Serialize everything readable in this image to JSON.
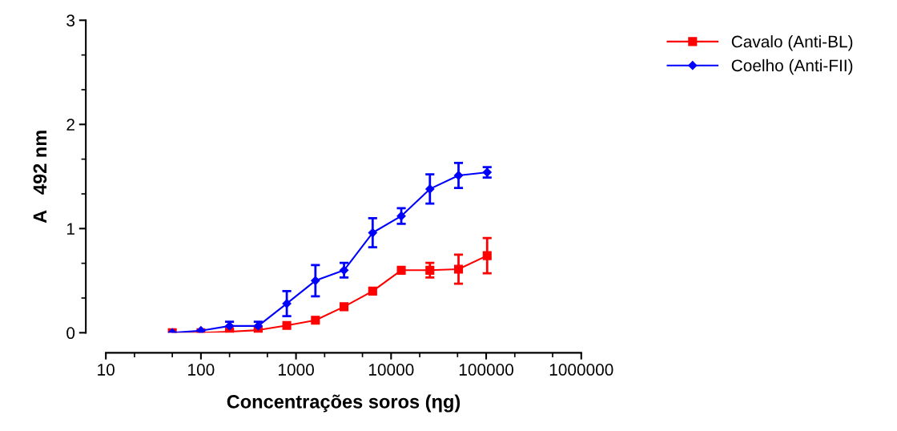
{
  "chart_data": {
    "type": "line",
    "xlabel": "Concentrações soros (ηg)",
    "ylabel": "A   492 nm",
    "x": [
      50,
      100,
      200,
      400,
      800,
      1600,
      3200,
      6400,
      12800,
      25600,
      51200,
      102400
    ],
    "log": "x",
    "xlim": [
      10,
      1000000
    ],
    "xticks": [
      10,
      100,
      1000,
      10000,
      100000,
      1000000
    ],
    "ylim": [
      0,
      3
    ],
    "yticks": [
      0,
      1,
      2,
      3
    ],
    "grid": false,
    "legend": "top right",
    "series": [
      {
        "name": "Cavalo (Anti-BL)",
        "color": "#ff0000",
        "marker": "square",
        "values": [
          0.0,
          0.0,
          0.01,
          0.025,
          0.07,
          0.12,
          0.25,
          0.4,
          0.6,
          0.6,
          0.61,
          0.74
        ],
        "errors": [
          null,
          null,
          null,
          null,
          null,
          null,
          null,
          null,
          null,
          0.07,
          0.14,
          0.17
        ]
      },
      {
        "name": "Coelho (Anti-FII)",
        "color": "#0000ff",
        "marker": "diamond",
        "values": [
          0.0,
          0.02,
          0.065,
          0.065,
          0.28,
          0.5,
          0.6,
          0.96,
          1.12,
          1.38,
          1.51,
          1.54
        ],
        "errors": [
          null,
          null,
          0.04,
          0.04,
          0.12,
          0.15,
          0.07,
          0.14,
          0.075,
          0.14,
          0.12,
          0.05
        ]
      }
    ]
  }
}
